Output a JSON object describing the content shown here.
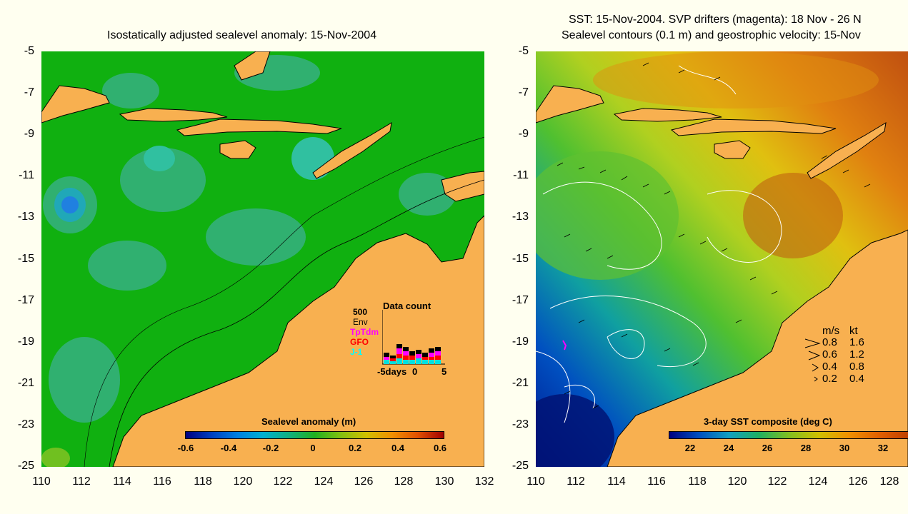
{
  "left_map": {
    "title": "Isostatically adjusted sealevel anomaly: 15-Nov-2004",
    "y_ticks": [
      "-5",
      "-7",
      "-9",
      "-11",
      "-13",
      "-15",
      "-17",
      "-19",
      "-21",
      "-23",
      "-25"
    ],
    "x_ticks": [
      "110",
      "112",
      "114",
      "116",
      "118",
      "120",
      "122",
      "124",
      "126",
      "128",
      "130",
      "132"
    ],
    "colorbar": {
      "title": "Sealevel anomaly (m)",
      "labels": [
        "-0.6",
        "-0.4",
        "-0.2",
        "0",
        "0.2",
        "0.4",
        "0.6"
      ]
    },
    "inset": {
      "title": "Data count",
      "ymax": "500",
      "legend": [
        {
          "label": "Env",
          "color": "#000000"
        },
        {
          "label": "TpTdm",
          "color": "#ff00ff"
        },
        {
          "label": "GFO",
          "color": "#ff0000"
        },
        {
          "label": "J-1",
          "color": "#00ffff"
        }
      ],
      "x_label_left": "-5days",
      "x_label_mid": "0",
      "x_label_right": "5"
    }
  },
  "right_map": {
    "title_line1": "SST: 15-Nov-2004. SVP drifters (magenta): 18 Nov - 26 N",
    "title_line2": "Sealevel contours (0.1 m) and geostrophic velocity: 15-Nov",
    "y_ticks": [
      "-5",
      "-7",
      "-9",
      "-11",
      "-13",
      "-15",
      "-17",
      "-19",
      "-21",
      "-23",
      "-25"
    ],
    "x_ticks": [
      "110",
      "112",
      "114",
      "116",
      "118",
      "120",
      "122",
      "124",
      "126",
      "128"
    ],
    "colorbar": {
      "title": "3-day SST composite (deg C)",
      "labels": [
        "22",
        "24",
        "26",
        "28",
        "30",
        "32"
      ]
    },
    "velocity_legend": {
      "header_ms": "m/s",
      "header_kt": "kt",
      "rows": [
        {
          "ms": "0.8",
          "kt": "1.6"
        },
        {
          "ms": "0.6",
          "kt": "1.2"
        },
        {
          "ms": "0.4",
          "kt": "0.8"
        },
        {
          "ms": "0.2",
          "kt": "0.4"
        }
      ]
    }
  },
  "colors": {
    "land": "#f8b050",
    "ocean_green": "#1cb41c",
    "background": "#fffff0"
  }
}
